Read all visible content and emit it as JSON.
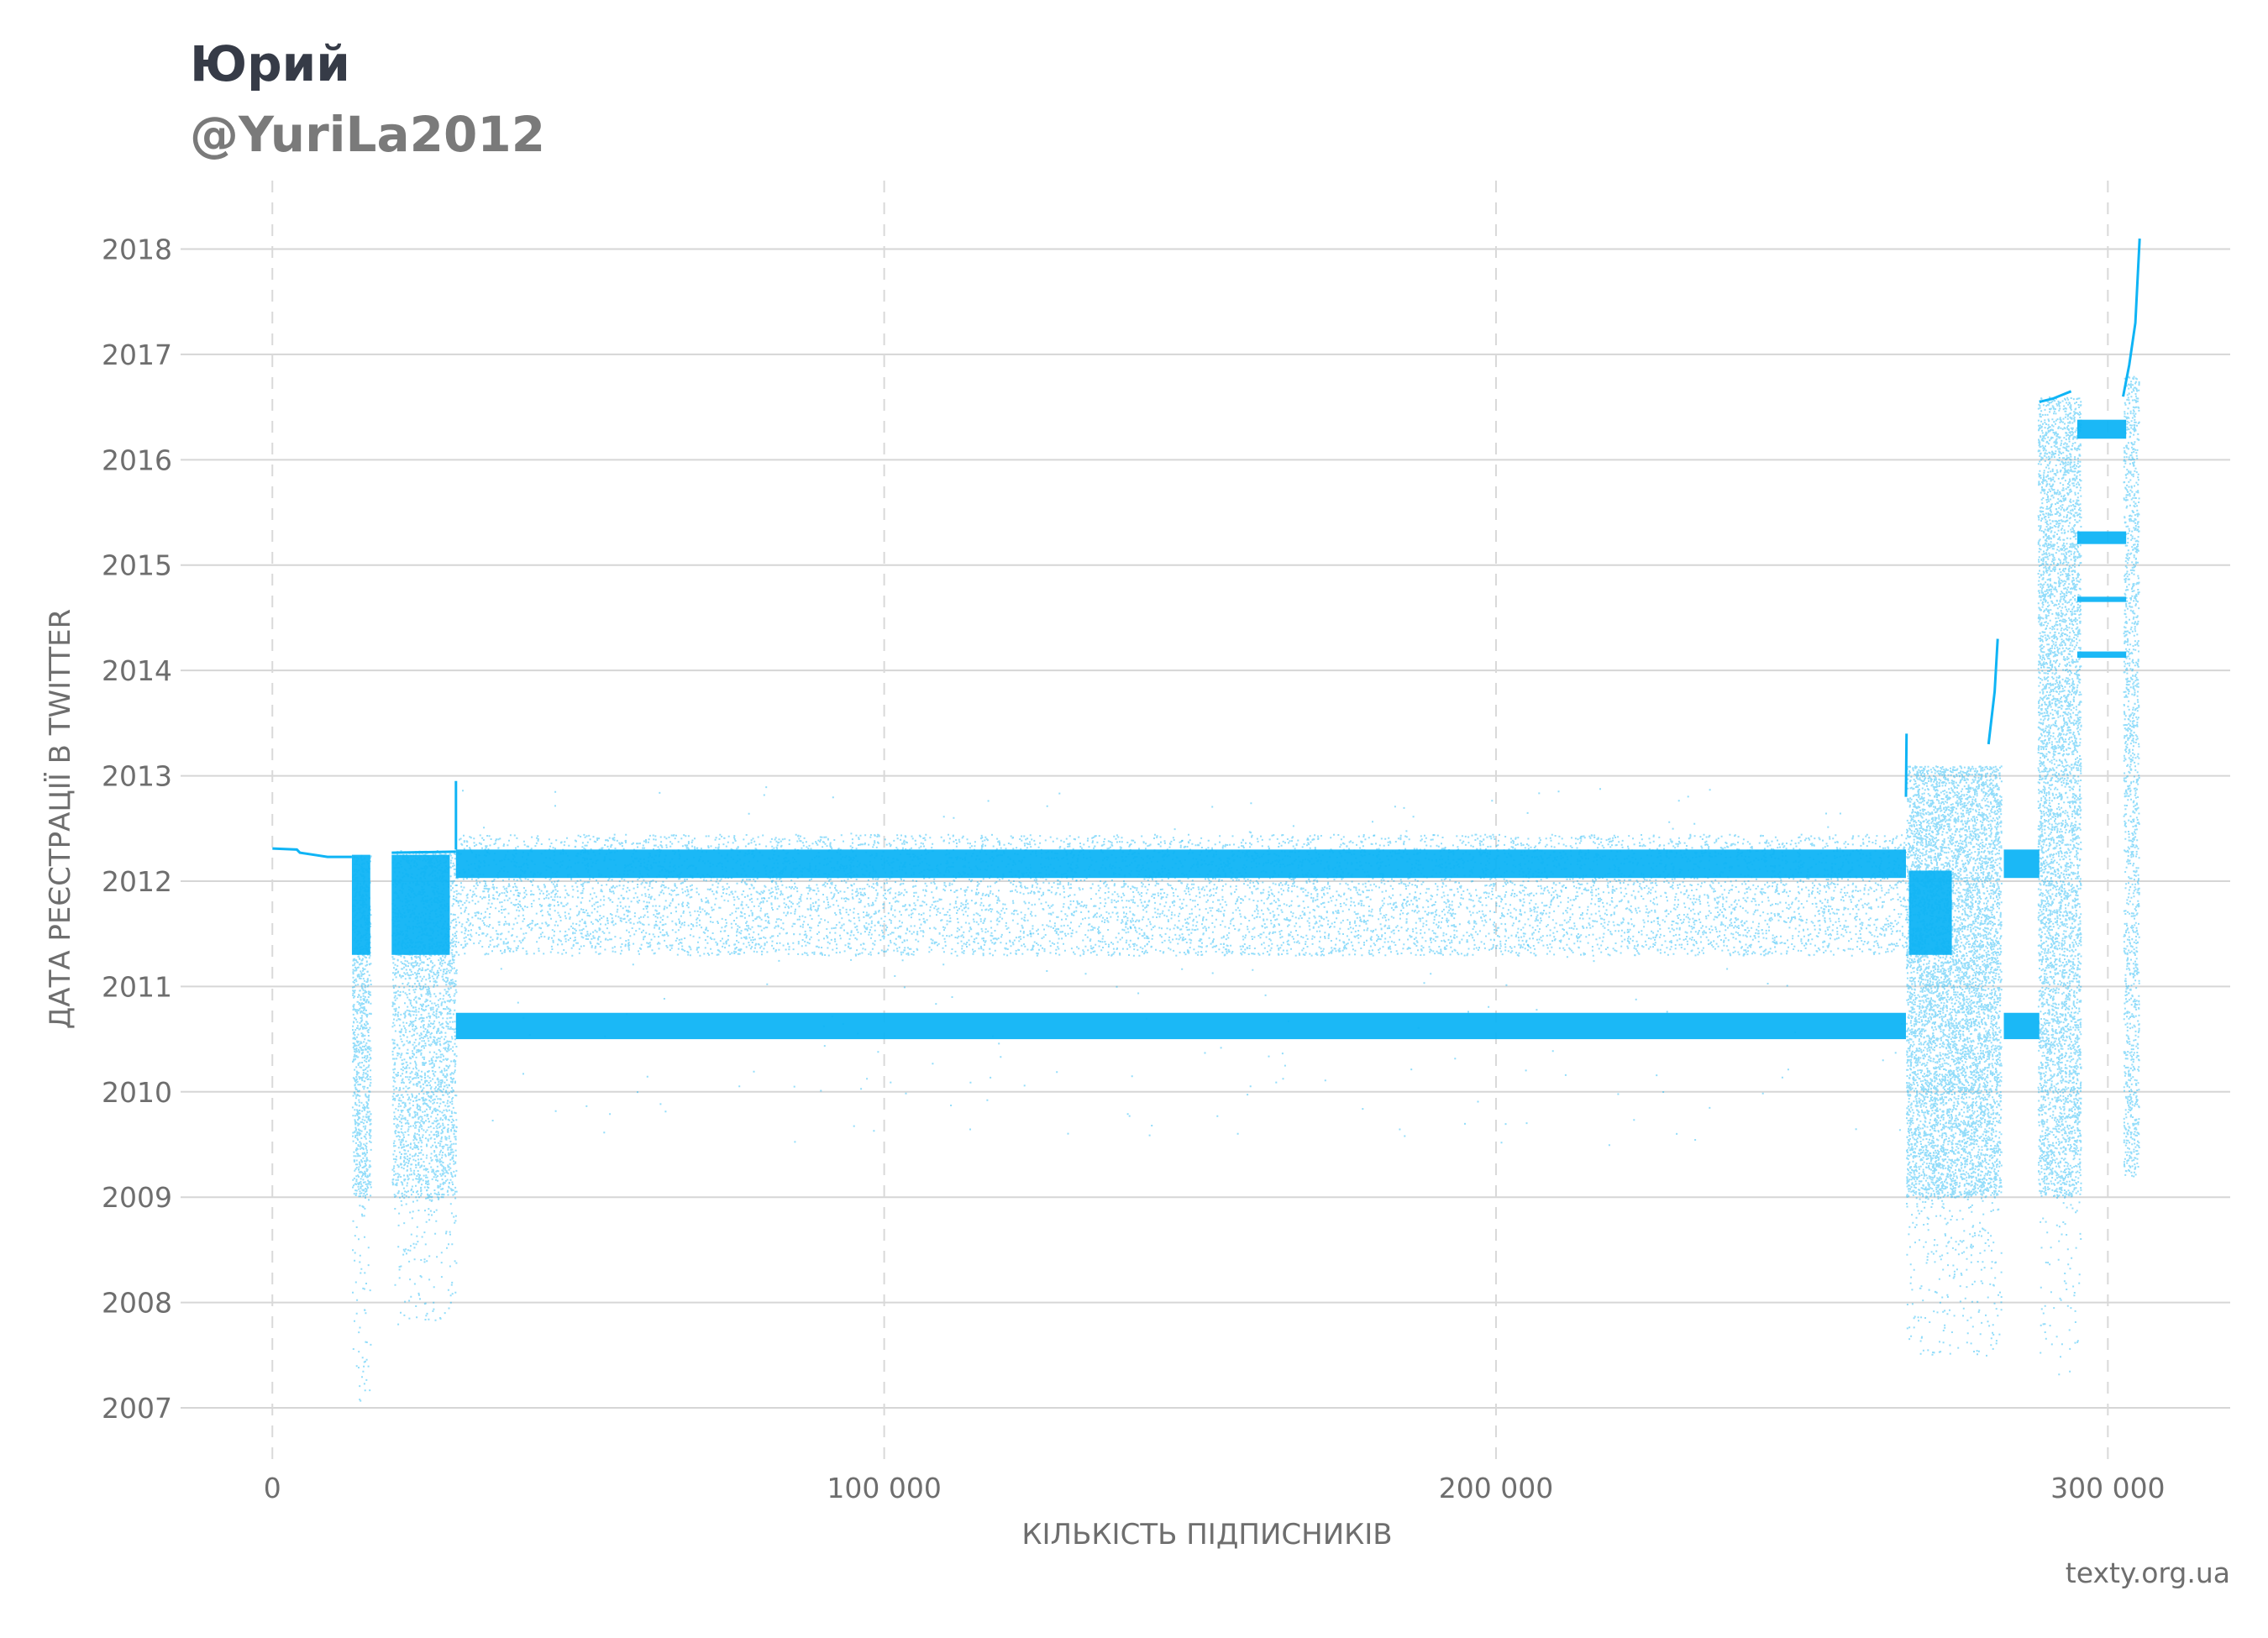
{
  "header": {
    "title": "Юрий",
    "subtitle": "@YuriLa2012"
  },
  "credit": "texty.org.ua",
  "chart_data": {
    "type": "scatter",
    "title": "Юрий",
    "subtitle": "@YuriLa2012",
    "xlabel": "КІЛЬКІСТЬ ПІДПИСНИКІВ",
    "ylabel": "ДАТА РЕЄСТРАЦІЇ В TWITTER",
    "xlim": [
      -15000,
      320000
    ],
    "ylim": [
      2006.45,
      2018.65
    ],
    "x_ticks": [
      0,
      100000,
      200000,
      300000
    ],
    "x_tick_labels": [
      "0",
      "100 000",
      "200 000",
      "300 000"
    ],
    "y_ticks": [
      2007,
      2008,
      2009,
      2010,
      2011,
      2012,
      2013,
      2014,
      2015,
      2016,
      2017,
      2018
    ],
    "y_tick_labels": [
      "2007",
      "2008",
      "2009",
      "2010",
      "2011",
      "2012",
      "2013",
      "2014",
      "2015",
      "2016",
      "2017",
      "2018"
    ],
    "grid": {
      "horizontal": "solid",
      "vertical": "dashed"
    },
    "point_color": "#0fb4f5",
    "series": [
      {
        "dense_bands": [
          {
            "x": [
              30000,
              267000
            ],
            "y": [
              2012.03,
              2012.3
            ]
          },
          {
            "x": [
              30000,
              267000
            ],
            "y": [
              2010.5,
              2010.75
            ]
          },
          {
            "x": [
              283000,
              288800
            ],
            "y": [
              2012.03,
              2012.3
            ]
          },
          {
            "x": [
              283000,
              288800
            ],
            "y": [
              2010.5,
              2010.75
            ]
          },
          {
            "x": [
              267500,
              274500
            ],
            "y": [
              2011.3,
              2012.1
            ]
          },
          {
            "x": [
              295000,
              303000
            ],
            "y": [
              2016.2,
              2016.38
            ]
          },
          {
            "x": [
              295000,
              303000
            ],
            "y": [
              2015.2,
              2015.32
            ]
          },
          {
            "x": [
              295000,
              303000
            ],
            "y": [
              2014.12,
              2014.18
            ]
          },
          {
            "x": [
              295000,
              303000
            ],
            "y": [
              2014.65,
              2014.7
            ]
          },
          {
            "x": [
              13000,
              16000
            ],
            "y": [
              2011.3,
              2012.25
            ]
          },
          {
            "x": [
              19500,
              29000
            ],
            "y": [
              2011.3,
              2012.25
            ]
          }
        ],
        "scatter_regions": [
          {
            "x": [
              30000,
              267000
            ],
            "y": [
              2011.3,
              2012.45
            ],
            "count": 9000
          },
          {
            "x": [
              30000,
              267000
            ],
            "y": [
              2009.5,
              2012.9
            ],
            "count": 260
          },
          {
            "x": [
              267000,
              282500
            ],
            "y": [
              2009.0,
              2013.1
            ],
            "count": 7000
          },
          {
            "x": [
              267000,
              282500
            ],
            "y": [
              2007.5,
              2009.0
            ],
            "count": 260
          },
          {
            "x": [
              288500,
              295500
            ],
            "y": [
              2009.0,
              2016.6
            ],
            "count": 5000
          },
          {
            "x": [
              288500,
              295500
            ],
            "y": [
              2007.3,
              2009.0
            ],
            "count": 70
          },
          {
            "x": [
              302500,
              305000
            ],
            "y": [
              2009.2,
              2016.8
            ],
            "count": 1400
          },
          {
            "x": [
              13000,
              16000
            ],
            "y": [
              2009.0,
              2012.25
            ],
            "count": 1000
          },
          {
            "x": [
              13000,
              16000
            ],
            "y": [
              2007.0,
              2009.0
            ],
            "count": 60
          },
          {
            "x": [
              19500,
              30000
            ],
            "y": [
              2009.0,
              2012.3
            ],
            "count": 2600
          },
          {
            "x": [
              19500,
              30000
            ],
            "y": [
              2007.8,
              2009.0
            ],
            "count": 120
          }
        ],
        "curves": [
          {
            "points": [
              [
                0,
                2012.31
              ],
              [
                4000,
                2012.3
              ],
              [
                4500,
                2012.27
              ],
              [
                9000,
                2012.23
              ],
              [
                13000,
                2012.23
              ]
            ]
          },
          {
            "points": [
              [
                19500,
                2012.27
              ],
              [
                30000,
                2012.28
              ]
            ]
          },
          {
            "points": [
              [
                30000,
                2012.3
              ],
              [
                30000,
                2012.95
              ]
            ]
          },
          {
            "points": [
              [
                267000,
                2012.8
              ],
              [
                267100,
                2013.4
              ]
            ]
          },
          {
            "points": [
              [
                280500,
                2013.3
              ],
              [
                281500,
                2013.8
              ],
              [
                282000,
                2014.3
              ]
            ]
          },
          {
            "points": [
              [
                288800,
                2016.55
              ],
              [
                291000,
                2016.58
              ],
              [
                294000,
                2016.65
              ]
            ]
          },
          {
            "points": [
              [
                302500,
                2016.6
              ],
              [
                303500,
                2016.9
              ],
              [
                304500,
                2017.3
              ],
              [
                305200,
                2018.1
              ]
            ]
          }
        ]
      }
    ]
  }
}
